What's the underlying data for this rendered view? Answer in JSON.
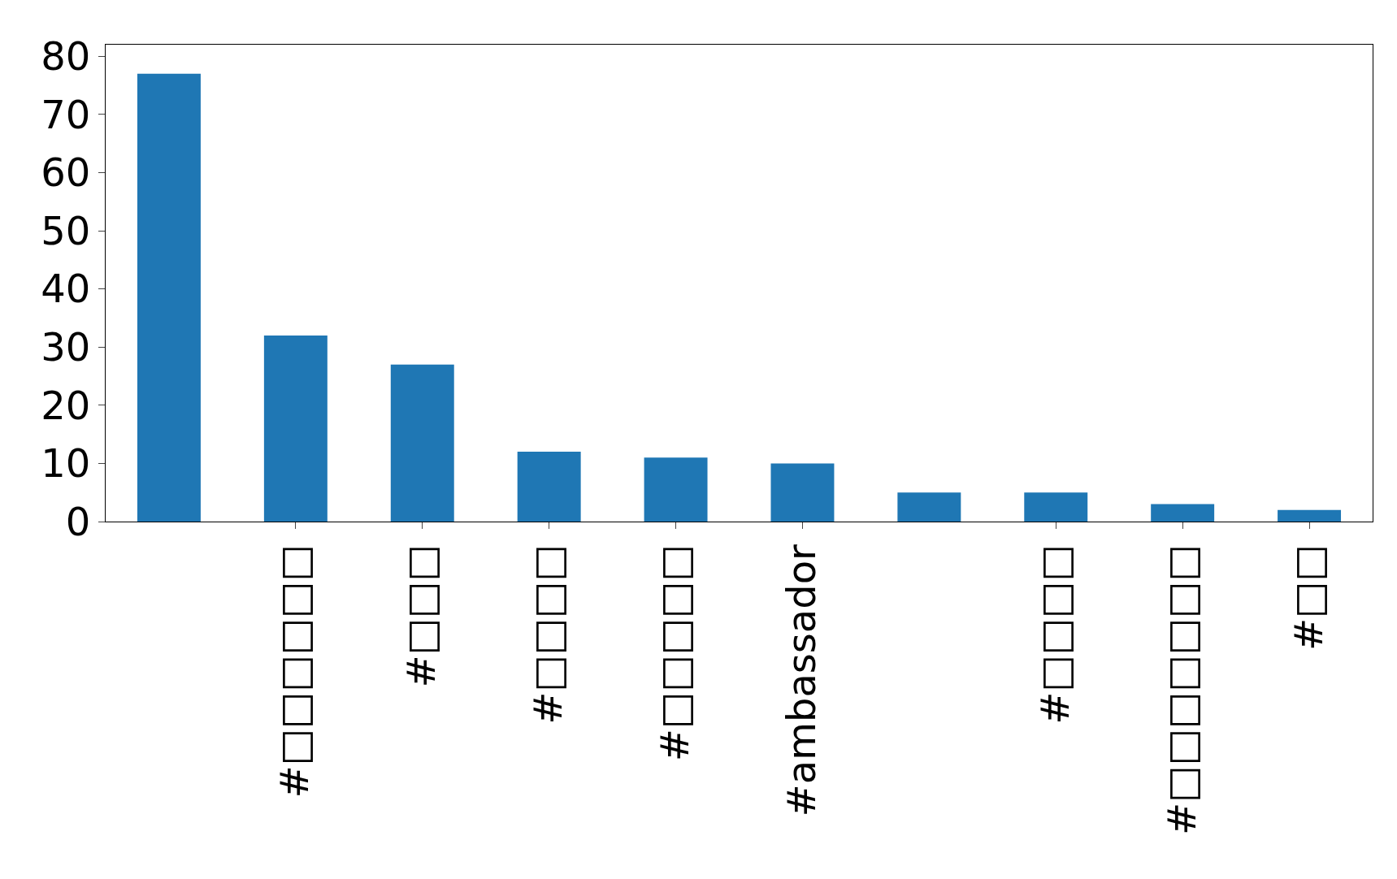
{
  "chart_data": {
    "type": "bar",
    "categories": [
      null,
      "#□□□□□□",
      "#□□□",
      "#□□□□",
      "#□□□□□",
      "#ambassador",
      null,
      "#□□□□",
      "#□□□□□□□",
      "#□□"
    ],
    "values": [
      77,
      32,
      27,
      12,
      11,
      10,
      5,
      5,
      3,
      2
    ],
    "color": "#1f77b4",
    "ylim": [
      0,
      82
    ],
    "yticks": [
      0,
      10,
      20,
      30,
      40,
      50,
      60,
      70,
      80
    ],
    "grid": false,
    "legend": false
  }
}
